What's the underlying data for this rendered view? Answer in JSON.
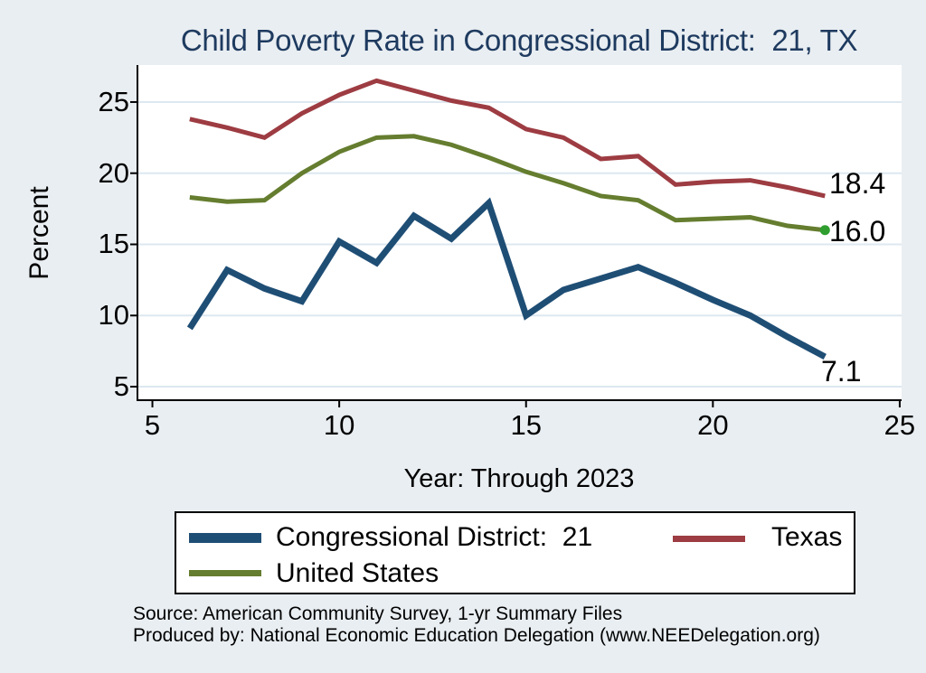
{
  "title": "Child Poverty Rate in Congressional District:  21, TX",
  "axes": {
    "y_title": "Percent",
    "x_title": "Year: Through 2023"
  },
  "chart_data": {
    "type": "line",
    "x": [
      6,
      7,
      8,
      9,
      10,
      11,
      12,
      13,
      14,
      15,
      16,
      17,
      18,
      19,
      20,
      21,
      22,
      23
    ],
    "series": [
      {
        "key": "district",
        "name": "Congressional District:  21",
        "color": "#1f4e75",
        "line_width": 7,
        "values": [
          9.1,
          13.2,
          11.9,
          11.0,
          15.2,
          13.7,
          17.0,
          15.4,
          17.9,
          10.0,
          11.8,
          12.6,
          13.4,
          12.3,
          11.1,
          10.0,
          8.5,
          7.1
        ]
      },
      {
        "key": "texas",
        "name": "Texas",
        "color": "#9d3c42",
        "line_width": 5,
        "values": [
          23.8,
          23.2,
          22.5,
          24.2,
          25.5,
          26.5,
          25.8,
          25.1,
          24.6,
          23.1,
          22.5,
          21.0,
          21.2,
          19.2,
          19.4,
          19.5,
          19.0,
          18.4
        ]
      },
      {
        "key": "united-states",
        "name": "United States",
        "color": "#657d2f",
        "line_width": 5,
        "values": [
          18.3,
          18.0,
          18.1,
          20.0,
          21.5,
          22.5,
          22.6,
          22.0,
          21.1,
          20.1,
          19.3,
          18.4,
          18.1,
          16.7,
          16.8,
          16.9,
          16.3,
          16.0
        ],
        "end_dot": true,
        "end_dot_color": "#2f9e2f"
      }
    ],
    "title": "Child Poverty Rate in Congressional District:  21, TX",
    "xlabel": "Year: Through 2023",
    "ylabel": "Percent",
    "x_ticks": [
      5,
      10,
      15,
      20,
      25
    ],
    "y_ticks": [
      5,
      10,
      15,
      20,
      25
    ],
    "xlim": [
      4.6,
      25.05
    ],
    "ylim": [
      4.05,
      27.6
    ],
    "grid": "horizontal-only",
    "legend_position": "bottom",
    "end_labels": [
      {
        "series": "Texas",
        "text": "18.4"
      },
      {
        "series": "United States",
        "text": "16.0"
      },
      {
        "series": "Congressional District:  21",
        "text": "7.1"
      }
    ]
  },
  "end_labels": {
    "texas": "18.4",
    "united_states": "16.0",
    "district": "7.1"
  },
  "legend": {
    "items": [
      {
        "label": "Congressional District:  21",
        "color": "#1f4e75"
      },
      {
        "label": "Texas",
        "color": "#9d3c42"
      },
      {
        "label": "United States",
        "color": "#657d2f"
      }
    ]
  },
  "footer": {
    "source": "Source: American Community Survey, 1-yr Summary Files",
    "produced_by": "Produced by: National Economic Education Delegation (www.NEEDelegation.org)"
  },
  "colors": {
    "background": "#e9eef2",
    "plot_background": "#ffffff",
    "gridline": "#dde8f0",
    "axis": "#000000",
    "title_text": "#1e3a5f"
  }
}
